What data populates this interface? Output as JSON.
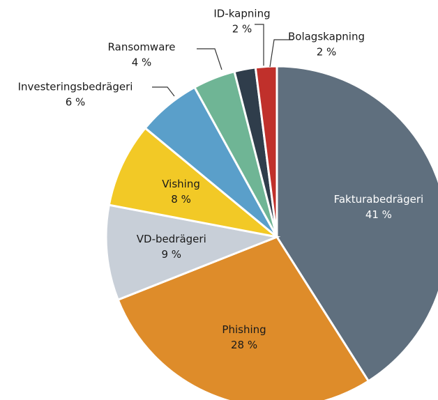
{
  "chart_data": {
    "type": "pie",
    "categories": [
      "Fakturabedrägeri",
      "Phishing",
      "VD-bedrägeri",
      "Vishing",
      "Investeringsbedrägeri",
      "Ransomware",
      "ID-kapning",
      "Bolagskapning"
    ],
    "values": [
      41,
      28,
      9,
      8,
      6,
      4,
      2,
      2
    ],
    "value_labels": [
      "41 %",
      "28 %",
      "9 %",
      "8 %",
      "6 %",
      "4 %",
      "2 %",
      "2 %"
    ],
    "colors": [
      "#5f6f7e",
      "#de8c2a",
      "#c8cfd8",
      "#f2c926",
      "#5a9fca",
      "#6fb595",
      "#2f3d4b",
      "#c0302b"
    ]
  }
}
